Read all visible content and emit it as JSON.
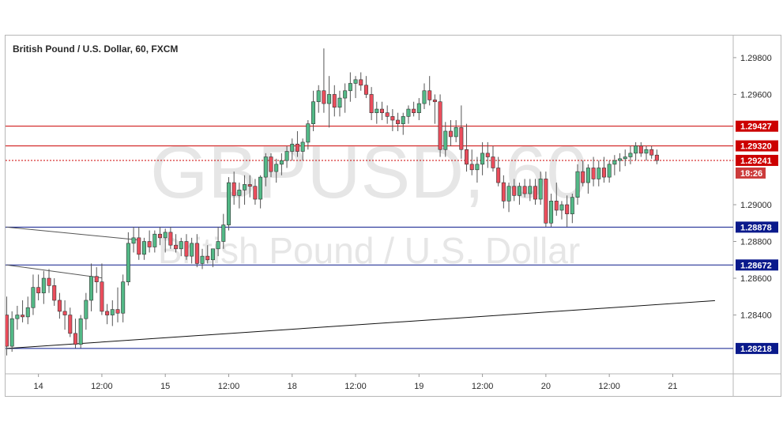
{
  "chart_data": {
    "type": "candlestick",
    "title": "British Pound / U.S. Dollar, 60, FXCM",
    "watermark": {
      "symbol": "GBPUSD, 60",
      "name": "British Pound / U.S. Dollar"
    },
    "ylim": [
      1.2808,
      1.2992
    ],
    "y_ticks": [
      "1.29800",
      "1.29600",
      "1.29000",
      "1.28800",
      "1.28600",
      "1.28400"
    ],
    "x_ticks": [
      {
        "label": "14",
        "slot": 6
      },
      {
        "label": "12:00",
        "slot": 18
      },
      {
        "label": "15",
        "slot": 30
      },
      {
        "label": "12:00",
        "slot": 42
      },
      {
        "label": "18",
        "slot": 54
      },
      {
        "label": "12:00",
        "slot": 66
      },
      {
        "label": "19",
        "slot": 78
      },
      {
        "label": "12:00",
        "slot": 90
      },
      {
        "label": "20",
        "slot": 102
      },
      {
        "label": "12:00",
        "slot": 114
      },
      {
        "label": "21",
        "slot": 126
      }
    ],
    "levels": [
      {
        "value": 1.29427,
        "label": "1.29427",
        "color": "#cc0000",
        "style": "solid"
      },
      {
        "value": 1.2932,
        "label": "1.29320",
        "color": "#cc0000",
        "style": "solid"
      },
      {
        "value": 1.29241,
        "label": "1.29241",
        "color": "#cc0000",
        "style": "dotted"
      },
      {
        "value": 1.28878,
        "label": "1.28878",
        "color": "#0a1a8c",
        "style": "solid"
      },
      {
        "value": 1.28672,
        "label": "1.28672",
        "color": "#0a1a8c",
        "style": "solid"
      },
      {
        "value": 1.28218,
        "label": "1.28218",
        "color": "#0a1a8c",
        "style": "solid"
      }
    ],
    "countdown": "18:26",
    "trendlines": [
      {
        "from": [
          0,
          1.28218
        ],
        "to": [
          134,
          1.28478
        ],
        "color": "#111111"
      },
      {
        "from": [
          0,
          1.28878
        ],
        "to": [
          25,
          1.28808
        ],
        "color": "#555555"
      },
      {
        "from": [
          0,
          1.28672
        ],
        "to": [
          18,
          1.28602
        ],
        "color": "#555555"
      }
    ],
    "candles": [
      [
        1.284,
        1.285,
        1.2818,
        1.2823
      ],
      [
        1.2823,
        1.2842,
        1.282,
        1.2838
      ],
      [
        1.2838,
        1.2845,
        1.2832,
        1.284
      ],
      [
        1.284,
        1.2848,
        1.2836,
        1.2839
      ],
      [
        1.2839,
        1.285,
        1.2835,
        1.2844
      ],
      [
        1.2844,
        1.2862,
        1.284,
        1.2855
      ],
      [
        1.2855,
        1.2862,
        1.2848,
        1.2852
      ],
      [
        1.2852,
        1.2864,
        1.2846,
        1.286
      ],
      [
        1.286,
        1.2865,
        1.2852,
        1.2856
      ],
      [
        1.2856,
        1.286,
        1.2845,
        1.2848
      ],
      [
        1.2848,
        1.2852,
        1.2838,
        1.2842
      ],
      [
        1.2842,
        1.2848,
        1.2832,
        1.284
      ],
      [
        1.284,
        1.2844,
        1.2828,
        1.283
      ],
      [
        1.283,
        1.2838,
        1.2822,
        1.2824
      ],
      [
        1.2824,
        1.284,
        1.2822,
        1.2838
      ],
      [
        1.2838,
        1.2852,
        1.2832,
        1.2848
      ],
      [
        1.2848,
        1.2868,
        1.2842,
        1.2861
      ],
      [
        1.2861,
        1.2866,
        1.2852,
        1.2858
      ],
      [
        1.2858,
        1.2868,
        1.284,
        1.2842
      ],
      [
        1.2842,
        1.2846,
        1.2835,
        1.284
      ],
      [
        1.284,
        1.2848,
        1.2834,
        1.2843
      ],
      [
        1.2843,
        1.2855,
        1.2836,
        1.2841
      ],
      [
        1.2841,
        1.2862,
        1.2836,
        1.2858
      ],
      [
        1.2858,
        1.2885,
        1.2856,
        1.2879
      ],
      [
        1.2879,
        1.2888,
        1.2874,
        1.2882
      ],
      [
        1.2882,
        1.2888,
        1.287,
        1.2873
      ],
      [
        1.2873,
        1.2882,
        1.287,
        1.288
      ],
      [
        1.288,
        1.2886,
        1.2874,
        1.2877
      ],
      [
        1.2877,
        1.2886,
        1.2874,
        1.2884
      ],
      [
        1.2884,
        1.2888,
        1.2878,
        1.2882
      ],
      [
        1.2882,
        1.2887,
        1.2874,
        1.2885
      ],
      [
        1.2885,
        1.2888,
        1.2876,
        1.2878
      ],
      [
        1.2878,
        1.2884,
        1.2874,
        1.2876
      ],
      [
        1.2876,
        1.2882,
        1.2872,
        1.288
      ],
      [
        1.288,
        1.2884,
        1.287,
        1.2872
      ],
      [
        1.2872,
        1.2882,
        1.2868,
        1.2879
      ],
      [
        1.2879,
        1.2884,
        1.2866,
        1.2868
      ],
      [
        1.2868,
        1.2876,
        1.2865,
        1.2872
      ],
      [
        1.2872,
        1.2878,
        1.2868,
        1.287
      ],
      [
        1.287,
        1.2876,
        1.2866,
        1.2876
      ],
      [
        1.2876,
        1.2888,
        1.2872,
        1.288
      ],
      [
        1.288,
        1.2895,
        1.2876,
        1.2889
      ],
      [
        1.2889,
        1.2915,
        1.2886,
        1.2912
      ],
      [
        1.2912,
        1.2918,
        1.29,
        1.2905
      ],
      [
        1.2905,
        1.2912,
        1.2898,
        1.2908
      ],
      [
        1.2908,
        1.2916,
        1.29,
        1.2911
      ],
      [
        1.2911,
        1.2916,
        1.2904,
        1.291
      ],
      [
        1.291,
        1.2914,
        1.29,
        1.2903
      ],
      [
        1.2903,
        1.2916,
        1.2898,
        1.2915
      ],
      [
        1.2915,
        1.2928,
        1.291,
        1.2926
      ],
      [
        1.2926,
        1.2928,
        1.2915,
        1.2918
      ],
      [
        1.2918,
        1.2925,
        1.2912,
        1.2922
      ],
      [
        1.2922,
        1.2928,
        1.2916,
        1.2924
      ],
      [
        1.2924,
        1.2932,
        1.292,
        1.2929
      ],
      [
        1.2929,
        1.2936,
        1.2924,
        1.2933
      ],
      [
        1.2933,
        1.294,
        1.2926,
        1.2929
      ],
      [
        1.2929,
        1.2936,
        1.2924,
        1.2934
      ],
      [
        1.2934,
        1.2946,
        1.293,
        1.2944
      ],
      [
        1.2944,
        1.2962,
        1.294,
        1.2956
      ],
      [
        1.2956,
        1.2965,
        1.295,
        1.2962
      ],
      [
        1.2962,
        1.2985,
        1.295,
        1.2955
      ],
      [
        1.2955,
        1.297,
        1.2942,
        1.296
      ],
      [
        1.296,
        1.2965,
        1.2948,
        1.2953
      ],
      [
        1.2953,
        1.2962,
        1.2948,
        1.2958
      ],
      [
        1.2958,
        1.2966,
        1.295,
        1.2962
      ],
      [
        1.2962,
        1.2972,
        1.2956,
        1.2966
      ],
      [
        1.2966,
        1.297,
        1.2958,
        1.2968
      ],
      [
        1.2968,
        1.2972,
        1.2962,
        1.2965
      ],
      [
        1.2965,
        1.297,
        1.2958,
        1.296
      ],
      [
        1.296,
        1.2964,
        1.2946,
        1.295
      ],
      [
        1.295,
        1.2956,
        1.2944,
        1.2952
      ],
      [
        1.2952,
        1.2956,
        1.2946,
        1.295
      ],
      [
        1.295,
        1.2954,
        1.2944,
        1.2948
      ],
      [
        1.2948,
        1.2952,
        1.294,
        1.2946
      ],
      [
        1.2946,
        1.295,
        1.294,
        1.2944
      ],
      [
        1.2944,
        1.295,
        1.2938,
        1.2948
      ],
      [
        1.2948,
        1.2954,
        1.2944,
        1.2952
      ],
      [
        1.2952,
        1.2956,
        1.2948,
        1.295
      ],
      [
        1.295,
        1.2958,
        1.2946,
        1.2955
      ],
      [
        1.2955,
        1.2966,
        1.2952,
        1.2962
      ],
      [
        1.2962,
        1.297,
        1.2954,
        1.2957
      ],
      [
        1.2957,
        1.296,
        1.2944,
        1.2956
      ],
      [
        1.2956,
        1.296,
        1.2926,
        1.293
      ],
      [
        1.293,
        1.2945,
        1.2926,
        1.294
      ],
      [
        1.294,
        1.2946,
        1.2932,
        1.2937
      ],
      [
        1.2937,
        1.2946,
        1.2934,
        1.2942
      ],
      [
        1.2942,
        1.2954,
        1.2925,
        1.293
      ],
      [
        1.293,
        1.2944,
        1.2918,
        1.2922
      ],
      [
        1.2922,
        1.293,
        1.2916,
        1.2919
      ],
      [
        1.2919,
        1.2926,
        1.2912,
        1.2922
      ],
      [
        1.2922,
        1.2934,
        1.2916,
        1.2928
      ],
      [
        1.2928,
        1.2934,
        1.292,
        1.2926
      ],
      [
        1.2926,
        1.2932,
        1.2918,
        1.292
      ],
      [
        1.292,
        1.2926,
        1.291,
        1.2912
      ],
      [
        1.2912,
        1.2916,
        1.2898,
        1.2902
      ],
      [
        1.2902,
        1.2912,
        1.2896,
        1.291
      ],
      [
        1.291,
        1.2914,
        1.2902,
        1.2905
      ],
      [
        1.2905,
        1.2912,
        1.29,
        1.291
      ],
      [
        1.291,
        1.2914,
        1.2904,
        1.2906
      ],
      [
        1.2906,
        1.2914,
        1.2902,
        1.291
      ],
      [
        1.291,
        1.2914,
        1.29,
        1.2903
      ],
      [
        1.2903,
        1.2918,
        1.29,
        1.2914
      ],
      [
        1.2914,
        1.2918,
        1.2888,
        1.289
      ],
      [
        1.289,
        1.2906,
        1.2888,
        1.2902
      ],
      [
        1.2902,
        1.2912,
        1.2894,
        1.2897
      ],
      [
        1.2897,
        1.2902,
        1.2892,
        1.29
      ],
      [
        1.29,
        1.2905,
        1.2888,
        1.2895
      ],
      [
        1.2895,
        1.2906,
        1.289,
        1.2904
      ],
      [
        1.2904,
        1.2922,
        1.29,
        1.2918
      ],
      [
        1.2918,
        1.2924,
        1.291,
        1.2912
      ],
      [
        1.2912,
        1.2922,
        1.2906,
        1.292
      ],
      [
        1.292,
        1.2926,
        1.291,
        1.2914
      ],
      [
        1.2914,
        1.2924,
        1.291,
        1.292
      ],
      [
        1.292,
        1.2926,
        1.2912,
        1.2915
      ],
      [
        1.2915,
        1.2924,
        1.2912,
        1.2922
      ],
      [
        1.2922,
        1.2927,
        1.2916,
        1.2924
      ],
      [
        1.2924,
        1.2928,
        1.2918,
        1.2925
      ],
      [
        1.2925,
        1.293,
        1.2921,
        1.2926
      ],
      [
        1.2926,
        1.2932,
        1.2922,
        1.2928
      ],
      [
        1.2928,
        1.2934,
        1.2924,
        1.2932
      ],
      [
        1.2932,
        1.2934,
        1.2926,
        1.2928
      ],
      [
        1.2928,
        1.2932,
        1.2924,
        1.293
      ],
      [
        1.293,
        1.2932,
        1.2925,
        1.2927
      ],
      [
        1.2927,
        1.293,
        1.2922,
        1.2924
      ]
    ]
  }
}
